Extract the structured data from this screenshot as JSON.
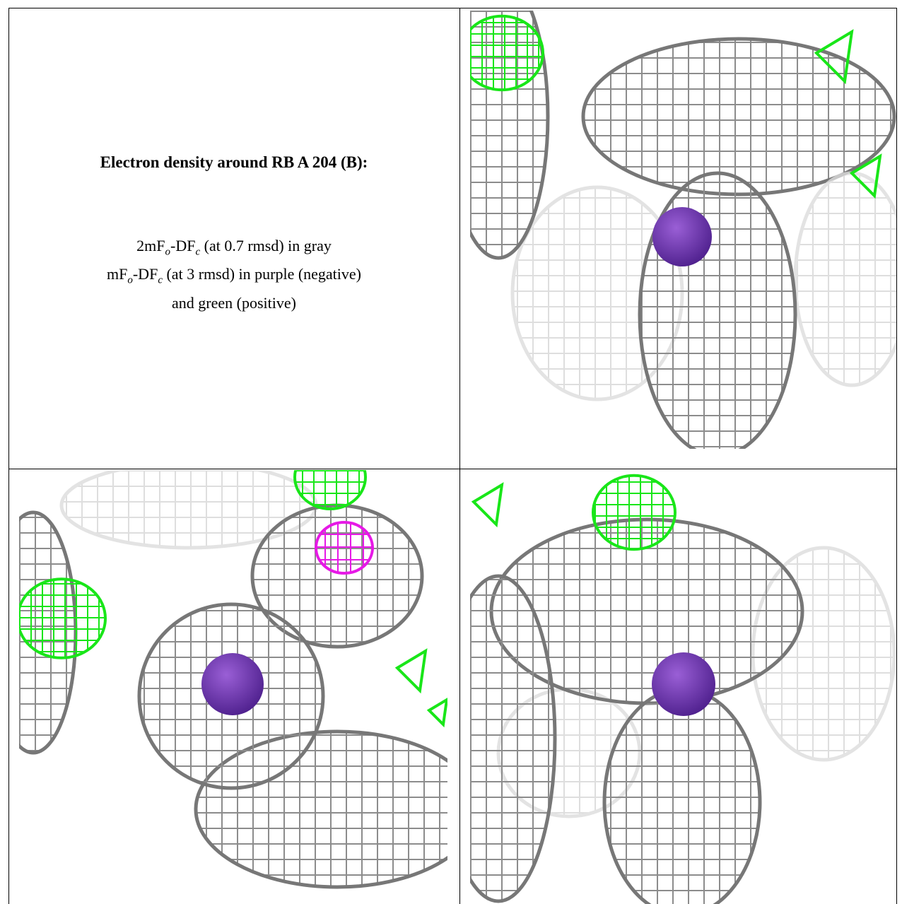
{
  "panel_text": {
    "title": "Electron density around RB A 204 (B):",
    "legend_lines": [
      [
        "2mF",
        "o",
        "-DF",
        "c",
        " (at 0.7 rmsd) in gray"
      ],
      [
        "mF",
        "o",
        "-DF",
        "c",
        " (at 3 rmsd) in purple (negative)"
      ],
      [
        "and green (positive)"
      ]
    ]
  }
}
